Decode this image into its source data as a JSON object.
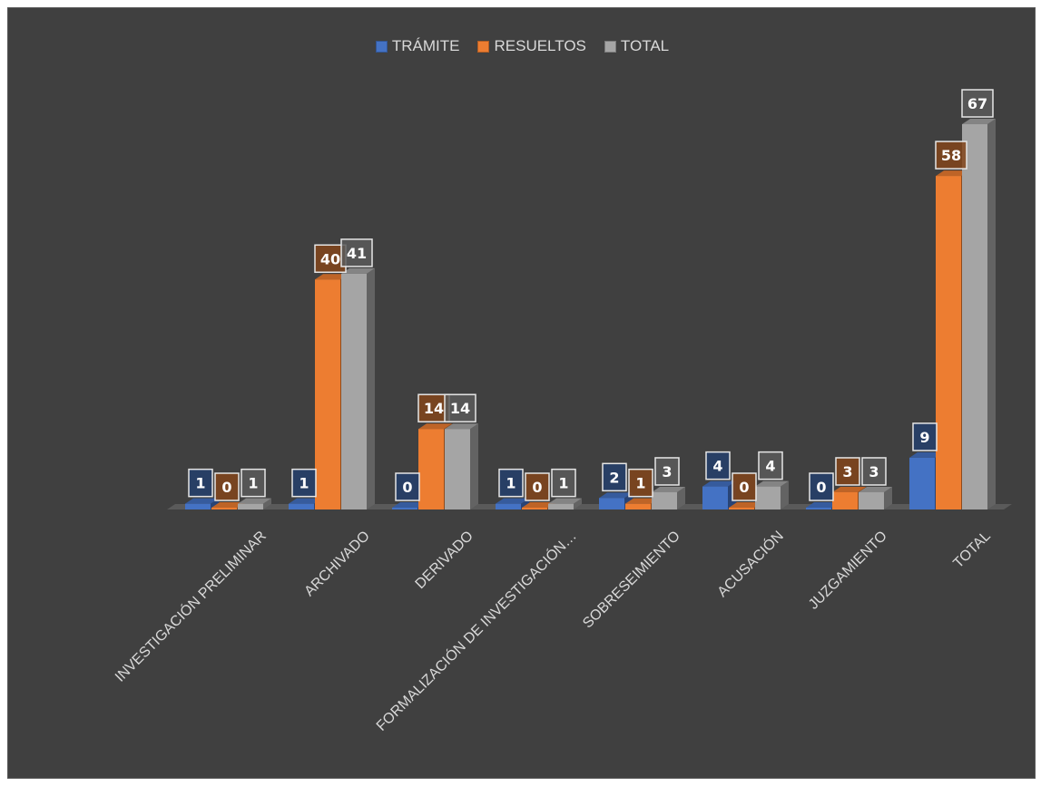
{
  "chart_data": {
    "type": "bar",
    "title": "",
    "xlabel": "",
    "ylabel": "",
    "ylim": [
      0,
      67
    ],
    "grid": false,
    "legend_position": "top",
    "categories": [
      "INVESTIGACIÓN PRELIMINAR",
      "ARCHIVADO",
      "DERIVADO",
      "FORMALIZACIÓN DE INVESTIGACIÓN…",
      "SOBRESEIMIENTO",
      "ACUSACIÓN",
      "JUZGAMIENTO",
      "TOTAL"
    ],
    "series": [
      {
        "name": "TRÁMITE",
        "color": "#4472C4",
        "values": [
          1,
          1,
          0,
          1,
          2,
          4,
          0,
          9
        ]
      },
      {
        "name": "RESUELTOS",
        "color": "#ED7D31",
        "values": [
          0,
          40,
          14,
          0,
          1,
          0,
          3,
          58
        ]
      },
      {
        "name": "TOTAL",
        "color": "#A5A5A5",
        "values": [
          1,
          41,
          14,
          1,
          3,
          4,
          3,
          67
        ]
      }
    ]
  },
  "legend": {
    "items": [
      {
        "label": "TRÁMITE",
        "color": "#4472C4"
      },
      {
        "label": "RESUELTOS",
        "color": "#ED7D31"
      },
      {
        "label": "TOTAL",
        "color": "#A5A5A5"
      }
    ]
  }
}
